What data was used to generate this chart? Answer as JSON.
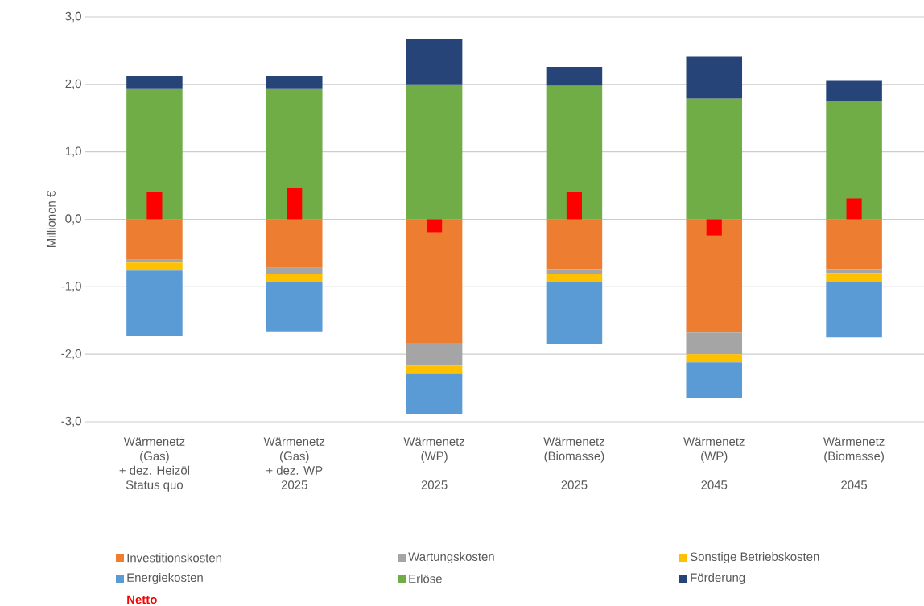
{
  "chart_data": {
    "type": "bar",
    "ylabel": "Millionen €",
    "categories": [
      "Wärmenetz\n(Gas)\n+ dez. Heizöl\nStatus quo",
      "Wärmenetz\n(Gas)\n+ dez. WP\n2025",
      "Wärmenetz\n(WP)\n\n2025",
      "Wärmenetz\n(Biomasse)\n\n2025",
      "Wärmenetz\n(WP)\n\n2045",
      "Wärmenetz\n(Biomasse)\n\n2045"
    ],
    "series": [
      {
        "name": "Investitionskosten",
        "color": "#ed7d31",
        "base": [
          0,
          0,
          0,
          0,
          0,
          0
        ],
        "values": [
          -0.6,
          -0.72,
          -1.83,
          -0.74,
          -1.68,
          -0.74
        ]
      },
      {
        "name": "Wartungskosten",
        "color": "#a5a5a5",
        "base": [
          -0.6,
          -0.72,
          -1.83,
          -0.74,
          -1.68,
          -0.74
        ],
        "values": [
          -0.04,
          -0.09,
          -0.34,
          -0.07,
          -0.32,
          -0.06
        ]
      },
      {
        "name": "Sonstige Betriebskosten",
        "color": "#ffc000",
        "base": [
          -0.64,
          -0.81,
          -2.17,
          -0.81,
          -2.0,
          -0.8
        ],
        "values": [
          -0.12,
          -0.12,
          -0.12,
          -0.12,
          -0.12,
          -0.13
        ]
      },
      {
        "name": "Energiekosten",
        "color": "#5b9bd5",
        "base": [
          -0.76,
          -0.93,
          -2.29,
          -0.93,
          -2.12,
          -0.93
        ],
        "values": [
          -0.97,
          -0.73,
          -0.59,
          -0.92,
          -0.53,
          -0.82
        ]
      },
      {
        "name": "Erlöse",
        "color": "#70ad47",
        "base": [
          0,
          0,
          0,
          0,
          0,
          0
        ],
        "values": [
          1.94,
          1.94,
          2.0,
          1.98,
          1.79,
          1.76
        ]
      },
      {
        "name": "Förderung",
        "color": "#264478",
        "base": [
          1.94,
          1.94,
          2.0,
          1.98,
          1.79,
          1.76
        ],
        "values": [
          0.19,
          0.18,
          0.67,
          0.28,
          0.62,
          0.29
        ]
      },
      {
        "name": "Netto",
        "color": "#ff0000",
        "base": [
          0,
          0,
          0,
          0,
          0,
          0
        ],
        "values": [
          0.41,
          0.47,
          -0.19,
          0.41,
          -0.24,
          0.31
        ]
      }
    ],
    "ylim": [
      -3,
      3
    ],
    "yticks": [
      {
        "value": -3,
        "label": "-3,0"
      },
      {
        "value": -2,
        "label": "-2,0"
      },
      {
        "value": -1,
        "label": "-1,0"
      },
      {
        "value": 0,
        "label": "0,0"
      },
      {
        "value": 1,
        "label": "1,0"
      },
      {
        "value": 2,
        "label": "2,0"
      },
      {
        "value": 3,
        "label": "3,0"
      }
    ],
    "grid": "y",
    "legend": "bottom"
  }
}
